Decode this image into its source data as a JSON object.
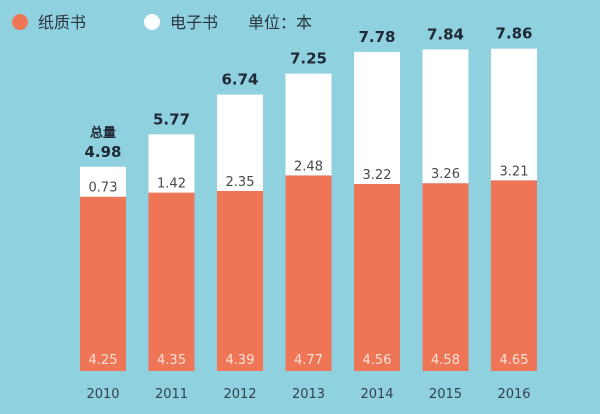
{
  "chart_data": {
    "type": "bar",
    "stacked": true,
    "categories": [
      "2010",
      "2011",
      "2012",
      "2013",
      "2014",
      "2015",
      "2016"
    ],
    "series": [
      {
        "name": "纸质书",
        "color": "#ef7557",
        "values": [
          4.25,
          4.35,
          4.39,
          4.77,
          4.56,
          4.58,
          4.65
        ]
      },
      {
        "name": "电子书",
        "color": "#ffffff",
        "values": [
          0.73,
          1.42,
          2.35,
          2.48,
          3.22,
          3.26,
          3.21
        ]
      }
    ],
    "totals": [
      4.98,
      5.77,
      6.74,
      7.25,
      7.78,
      7.84,
      7.86
    ],
    "total_prefix": "总量",
    "unit_label": "单位：本",
    "legend_position": "top-left",
    "ylim": [
      0,
      8.9
    ],
    "grid": false
  }
}
